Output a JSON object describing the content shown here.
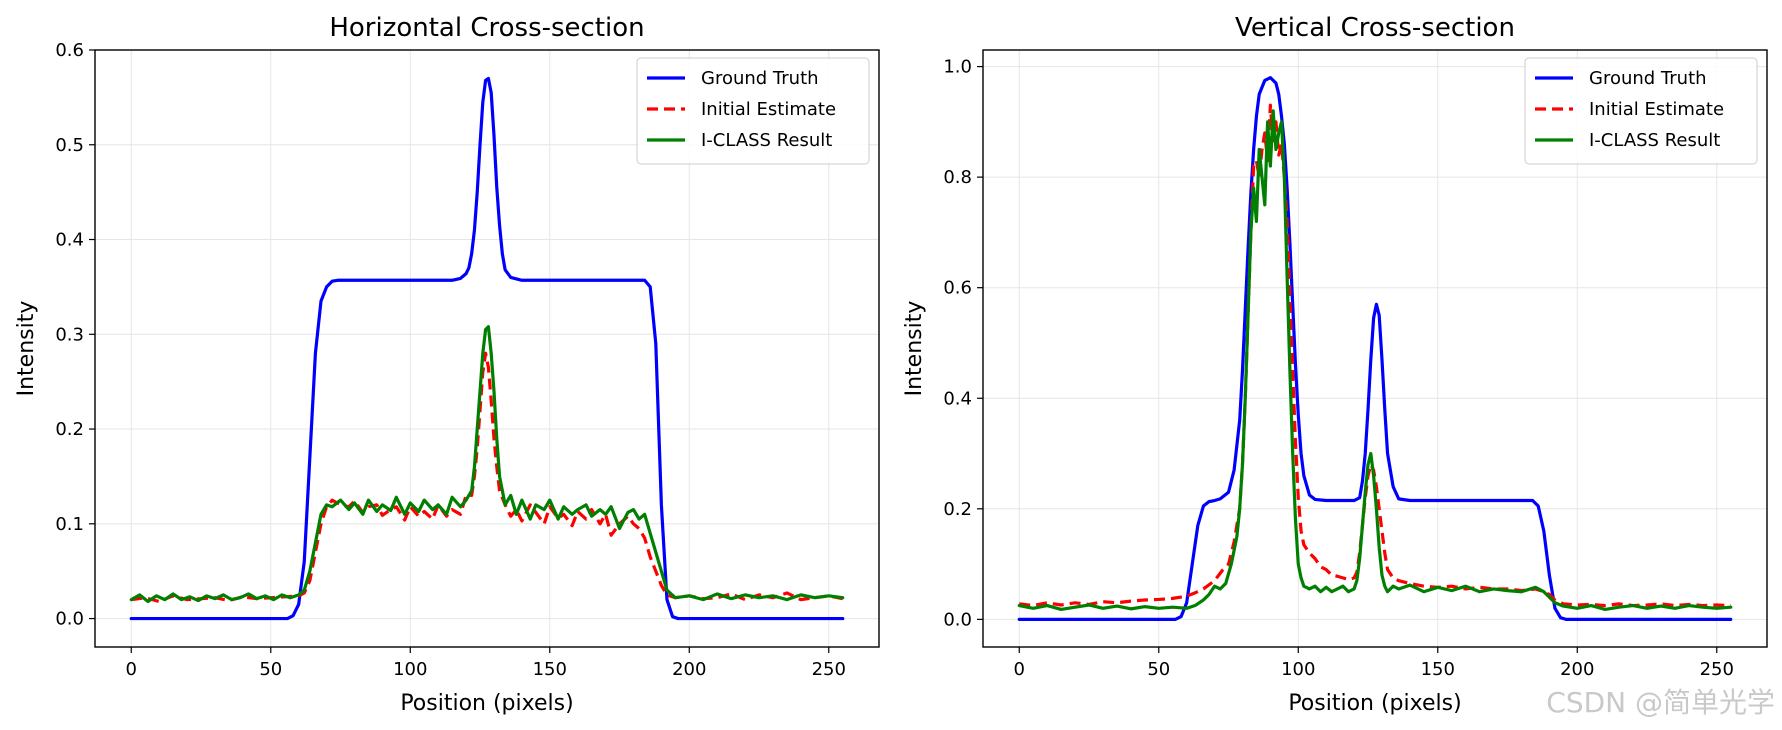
{
  "watermark": "CSDN @简单光学",
  "chart_data": [
    {
      "type": "line",
      "title": "Horizontal Cross-section",
      "xlabel": "Position (pixels)",
      "ylabel": "Intensity",
      "xlim": [
        -13,
        268
      ],
      "ylim": [
        -0.03,
        0.6
      ],
      "xticks": [
        0,
        50,
        100,
        150,
        200,
        250
      ],
      "yticks": [
        0.0,
        0.1,
        0.2,
        0.3,
        0.4,
        0.5,
        0.6
      ],
      "xtick_labels": [
        "0",
        "50",
        "100",
        "150",
        "200",
        "250"
      ],
      "ytick_labels": [
        "0.0",
        "0.1",
        "0.2",
        "0.3",
        "0.4",
        "0.5",
        "0.6"
      ],
      "grid": true,
      "legend_position": "top-right",
      "series": [
        {
          "name": "Ground Truth",
          "color": "#0000ff",
          "style": "solid",
          "x": [
            0,
            56,
            58,
            60,
            62,
            64,
            66,
            68,
            70,
            72,
            74,
            80,
            90,
            100,
            110,
            115,
            118,
            120,
            121,
            122,
            123,
            124,
            125,
            126,
            127,
            128,
            129,
            130,
            131,
            132,
            133,
            134,
            136,
            140,
            150,
            160,
            170,
            180,
            184,
            186,
            188,
            190,
            192,
            194,
            196,
            255
          ],
          "y": [
            0.0,
            0.0,
            0.003,
            0.015,
            0.06,
            0.17,
            0.28,
            0.335,
            0.35,
            0.356,
            0.357,
            0.357,
            0.357,
            0.357,
            0.357,
            0.357,
            0.359,
            0.364,
            0.37,
            0.385,
            0.41,
            0.45,
            0.5,
            0.545,
            0.568,
            0.57,
            0.555,
            0.51,
            0.455,
            0.415,
            0.385,
            0.368,
            0.36,
            0.357,
            0.357,
            0.357,
            0.357,
            0.357,
            0.357,
            0.35,
            0.29,
            0.12,
            0.02,
            0.002,
            0.0,
            0.0
          ]
        },
        {
          "name": "Initial Estimate",
          "color": "#ff0000",
          "style": "dashed",
          "x": [
            0,
            5,
            10,
            15,
            20,
            25,
            30,
            35,
            40,
            45,
            50,
            55,
            60,
            62,
            64,
            66,
            68,
            70,
            72,
            75,
            78,
            80,
            83,
            85,
            88,
            90,
            93,
            95,
            98,
            100,
            103,
            105,
            108,
            110,
            113,
            115,
            118,
            120,
            122,
            123,
            124,
            125,
            126,
            127,
            128,
            129,
            130,
            131,
            132,
            134,
            136,
            138,
            140,
            143,
            145,
            148,
            150,
            153,
            155,
            158,
            160,
            163,
            165,
            168,
            170,
            172,
            175,
            178,
            180,
            182,
            184,
            186,
            188,
            190,
            192,
            195,
            200,
            205,
            210,
            215,
            220,
            225,
            230,
            235,
            240,
            245,
            250,
            255
          ],
          "y": [
            0.02,
            0.022,
            0.018,
            0.024,
            0.02,
            0.021,
            0.022,
            0.019,
            0.023,
            0.021,
            0.022,
            0.023,
            0.024,
            0.027,
            0.04,
            0.07,
            0.1,
            0.118,
            0.125,
            0.12,
            0.118,
            0.124,
            0.112,
            0.118,
            0.12,
            0.109,
            0.115,
            0.118,
            0.104,
            0.118,
            0.108,
            0.113,
            0.105,
            0.12,
            0.108,
            0.115,
            0.11,
            0.13,
            0.13,
            0.15,
            0.18,
            0.22,
            0.26,
            0.28,
            0.265,
            0.23,
            0.19,
            0.16,
            0.135,
            0.12,
            0.108,
            0.115,
            0.103,
            0.12,
            0.112,
            0.1,
            0.118,
            0.106,
            0.11,
            0.098,
            0.113,
            0.105,
            0.115,
            0.1,
            0.11,
            0.088,
            0.1,
            0.108,
            0.1,
            0.095,
            0.085,
            0.065,
            0.05,
            0.035,
            0.025,
            0.022,
            0.024,
            0.021,
            0.022,
            0.026,
            0.02,
            0.025,
            0.022,
            0.027,
            0.02,
            0.022,
            0.024,
            0.021
          ]
        },
        {
          "name": "I-CLASS Result",
          "color": "#008000",
          "style": "solid",
          "x": [
            0,
            3,
            6,
            9,
            12,
            15,
            18,
            21,
            24,
            27,
            30,
            33,
            36,
            39,
            42,
            45,
            48,
            51,
            54,
            57,
            60,
            62,
            64,
            66,
            68,
            70,
            72,
            75,
            78,
            80,
            83,
            85,
            88,
            90,
            93,
            95,
            98,
            100,
            103,
            105,
            108,
            110,
            113,
            115,
            118,
            120,
            122,
            123,
            124,
            125,
            126,
            127,
            128,
            129,
            130,
            131,
            132,
            134,
            136,
            138,
            140,
            143,
            145,
            148,
            150,
            153,
            155,
            158,
            160,
            163,
            165,
            168,
            170,
            172,
            175,
            178,
            180,
            182,
            184,
            186,
            188,
            190,
            192,
            195,
            200,
            205,
            210,
            215,
            220,
            225,
            230,
            235,
            240,
            245,
            250,
            255
          ],
          "y": [
            0.02,
            0.025,
            0.018,
            0.024,
            0.02,
            0.026,
            0.02,
            0.023,
            0.019,
            0.024,
            0.021,
            0.025,
            0.02,
            0.022,
            0.026,
            0.021,
            0.024,
            0.02,
            0.025,
            0.022,
            0.025,
            0.03,
            0.05,
            0.08,
            0.11,
            0.12,
            0.118,
            0.125,
            0.115,
            0.122,
            0.11,
            0.125,
            0.113,
            0.12,
            0.114,
            0.128,
            0.11,
            0.122,
            0.113,
            0.125,
            0.115,
            0.12,
            0.11,
            0.128,
            0.118,
            0.125,
            0.135,
            0.16,
            0.2,
            0.24,
            0.28,
            0.305,
            0.308,
            0.28,
            0.24,
            0.19,
            0.15,
            0.12,
            0.13,
            0.11,
            0.125,
            0.105,
            0.12,
            0.115,
            0.125,
            0.105,
            0.118,
            0.11,
            0.115,
            0.12,
            0.108,
            0.115,
            0.11,
            0.118,
            0.095,
            0.112,
            0.115,
            0.105,
            0.11,
            0.09,
            0.07,
            0.05,
            0.03,
            0.022,
            0.024,
            0.02,
            0.026,
            0.021,
            0.025,
            0.022,
            0.024,
            0.02,
            0.025,
            0.022,
            0.024,
            0.022
          ]
        }
      ]
    },
    {
      "type": "line",
      "title": "Vertical Cross-section",
      "xlabel": "Position (pixels)",
      "ylabel": "Intensity",
      "xlim": [
        -13,
        268
      ],
      "ylim": [
        -0.05,
        1.03
      ],
      "xticks": [
        0,
        50,
        100,
        150,
        200,
        250
      ],
      "yticks": [
        0.0,
        0.2,
        0.4,
        0.6,
        0.8,
        1.0
      ],
      "xtick_labels": [
        "0",
        "50",
        "100",
        "150",
        "200",
        "250"
      ],
      "ytick_labels": [
        "0.0",
        "0.2",
        "0.4",
        "0.6",
        "0.8",
        "1.0"
      ],
      "grid": true,
      "legend_position": "top-right",
      "series": [
        {
          "name": "Ground Truth",
          "color": "#0000ff",
          "style": "solid",
          "x": [
            0,
            56,
            58,
            60,
            62,
            64,
            66,
            68,
            70,
            72,
            75,
            77,
            79,
            80,
            81,
            82,
            83,
            84,
            85,
            86,
            88,
            90,
            92,
            93,
            94,
            95,
            96,
            97,
            98,
            99,
            100,
            101,
            102,
            104,
            106,
            110,
            115,
            120,
            122,
            123,
            124,
            125,
            126,
            127,
            128,
            129,
            130,
            131,
            132,
            134,
            136,
            140,
            150,
            160,
            170,
            180,
            184,
            186,
            188,
            190,
            192,
            194,
            196,
            255
          ],
          "y": [
            0.0,
            0.0,
            0.005,
            0.03,
            0.1,
            0.17,
            0.205,
            0.213,
            0.215,
            0.218,
            0.23,
            0.27,
            0.36,
            0.45,
            0.56,
            0.67,
            0.77,
            0.85,
            0.91,
            0.95,
            0.975,
            0.98,
            0.97,
            0.95,
            0.91,
            0.86,
            0.78,
            0.68,
            0.57,
            0.46,
            0.37,
            0.3,
            0.26,
            0.225,
            0.217,
            0.215,
            0.215,
            0.215,
            0.22,
            0.25,
            0.3,
            0.38,
            0.47,
            0.545,
            0.57,
            0.55,
            0.47,
            0.38,
            0.3,
            0.24,
            0.218,
            0.215,
            0.215,
            0.215,
            0.215,
            0.215,
            0.215,
            0.205,
            0.16,
            0.08,
            0.02,
            0.003,
            0.0,
            0.0
          ]
        },
        {
          "name": "Initial Estimate",
          "color": "#ff0000",
          "style": "dashed",
          "x": [
            0,
            5,
            10,
            15,
            20,
            25,
            30,
            35,
            40,
            45,
            50,
            55,
            60,
            63,
            66,
            70,
            73,
            75,
            77,
            79,
            80,
            81,
            82,
            83,
            84,
            85,
            86,
            87,
            88,
            89,
            90,
            91,
            92,
            93,
            94,
            95,
            96,
            97,
            98,
            99,
            100,
            101,
            102,
            104,
            106,
            108,
            110,
            112,
            114,
            116,
            118,
            120,
            121,
            122,
            123,
            124,
            125,
            126,
            127,
            128,
            129,
            130,
            131,
            132,
            134,
            136,
            140,
            145,
            150,
            155,
            160,
            165,
            170,
            175,
            180,
            185,
            188,
            190,
            192,
            195,
            200,
            205,
            210,
            215,
            220,
            225,
            230,
            235,
            240,
            245,
            250,
            255
          ],
          "y": [
            0.028,
            0.025,
            0.03,
            0.026,
            0.03,
            0.027,
            0.032,
            0.03,
            0.033,
            0.035,
            0.036,
            0.038,
            0.042,
            0.048,
            0.055,
            0.07,
            0.09,
            0.1,
            0.14,
            0.2,
            0.28,
            0.4,
            0.55,
            0.7,
            0.82,
            0.83,
            0.8,
            0.85,
            0.88,
            0.83,
            0.93,
            0.86,
            0.9,
            0.84,
            0.86,
            0.8,
            0.72,
            0.58,
            0.45,
            0.32,
            0.22,
            0.16,
            0.135,
            0.12,
            0.11,
            0.095,
            0.09,
            0.08,
            0.078,
            0.075,
            0.072,
            0.075,
            0.085,
            0.12,
            0.17,
            0.22,
            0.26,
            0.28,
            0.27,
            0.24,
            0.2,
            0.16,
            0.12,
            0.09,
            0.075,
            0.07,
            0.065,
            0.06,
            0.058,
            0.06,
            0.055,
            0.058,
            0.055,
            0.055,
            0.052,
            0.055,
            0.05,
            0.045,
            0.035,
            0.028,
            0.026,
            0.027,
            0.025,
            0.028,
            0.025,
            0.026,
            0.028,
            0.025,
            0.027,
            0.025,
            0.026,
            0.025
          ]
        },
        {
          "name": "I-CLASS Result",
          "color": "#008000",
          "style": "solid",
          "x": [
            0,
            5,
            10,
            15,
            20,
            25,
            30,
            35,
            40,
            45,
            50,
            55,
            60,
            63,
            66,
            68,
            70,
            72,
            74,
            76,
            78,
            79,
            80,
            81,
            82,
            83,
            84,
            85,
            86,
            87,
            88,
            89,
            90,
            91,
            92,
            93,
            94,
            95,
            96,
            97,
            98,
            99,
            100,
            101,
            102,
            104,
            106,
            108,
            110,
            112,
            114,
            116,
            118,
            120,
            121,
            122,
            123,
            124,
            125,
            126,
            127,
            128,
            129,
            130,
            131,
            132,
            134,
            136,
            140,
            145,
            150,
            155,
            160,
            165,
            170,
            175,
            180,
            185,
            188,
            190,
            192,
            195,
            200,
            205,
            210,
            215,
            220,
            225,
            230,
            235,
            240,
            245,
            250,
            255
          ],
          "y": [
            0.025,
            0.02,
            0.025,
            0.018,
            0.022,
            0.026,
            0.02,
            0.024,
            0.019,
            0.023,
            0.02,
            0.022,
            0.02,
            0.025,
            0.035,
            0.045,
            0.06,
            0.055,
            0.065,
            0.1,
            0.15,
            0.2,
            0.28,
            0.4,
            0.55,
            0.7,
            0.78,
            0.72,
            0.85,
            0.8,
            0.75,
            0.9,
            0.82,
            0.92,
            0.85,
            0.88,
            0.9,
            0.8,
            0.62,
            0.45,
            0.3,
            0.18,
            0.1,
            0.075,
            0.06,
            0.055,
            0.06,
            0.05,
            0.058,
            0.05,
            0.055,
            0.06,
            0.05,
            0.055,
            0.07,
            0.11,
            0.17,
            0.23,
            0.28,
            0.3,
            0.26,
            0.2,
            0.13,
            0.08,
            0.06,
            0.05,
            0.06,
            0.055,
            0.062,
            0.05,
            0.058,
            0.052,
            0.06,
            0.05,
            0.055,
            0.052,
            0.05,
            0.058,
            0.05,
            0.04,
            0.03,
            0.024,
            0.02,
            0.025,
            0.018,
            0.022,
            0.025,
            0.02,
            0.024,
            0.02,
            0.025,
            0.022,
            0.02,
            0.022
          ]
        }
      ]
    }
  ]
}
